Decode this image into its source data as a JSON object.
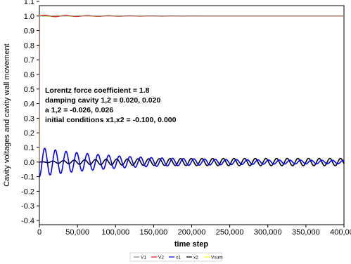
{
  "chart_data": {
    "type": "line",
    "title": "",
    "xlabel": "time step",
    "ylabel": "Cavity voltages and cavity wall movement",
    "xlim": [
      0,
      400000
    ],
    "ylim": [
      -0.4,
      1.1
    ],
    "x_ticks": [
      0,
      50000,
      100000,
      150000,
      200000,
      250000,
      300000,
      350000,
      400000
    ],
    "x_tick_labels": [
      "0",
      "50,000",
      "100,000",
      "150,000",
      "200,000",
      "250,000",
      "300,000",
      "350,000",
      "400,000"
    ],
    "y_ticks": [
      -0.4,
      -0.3,
      -0.2,
      -0.1,
      0.0,
      0.1,
      0.2,
      0.3,
      0.4,
      0.5,
      0.6,
      0.7,
      0.8,
      0.9,
      1.0,
      1.1
    ],
    "y_tick_labels": [
      "-0.4",
      "-0.3",
      "-0.2",
      "-0.1",
      "0.0",
      "0.1",
      "0.2",
      "0.3",
      "0.4",
      "0.5",
      "0.6",
      "0.7",
      "0.8",
      "0.9",
      "1.0",
      "1.1"
    ],
    "annotations": [
      "Lorentz force coefficient = 1.8",
      "damping cavity 1,2 =   0.020,   0.020",
      "a 1,2 =  -0.026,   0.026",
      "initial conditions x1,x2 =  -0.100,   0.000"
    ],
    "legend_position": "bottom-center",
    "series": [
      {
        "name": "V1",
        "color": "#808080",
        "description": "steps to 1.0 at t=0 and stays ~1.0"
      },
      {
        "name": "V2",
        "color": "#ff0000",
        "description": "steps to 1.0 at t=0 with small ripple until ~210,000"
      },
      {
        "name": "x1",
        "color": "#0000ff",
        "description": "damped oscillation starting at -0.100, amplitude ~0.09 decaying to ~0.01"
      },
      {
        "name": "x2",
        "color": "#000000",
        "description": "oscillation starting at 0.000, amplitude growing to ~0.025"
      },
      {
        "name": "Vsum",
        "color": "#ffff00",
        "description": "near 1.0 with ripple in early time"
      }
    ],
    "approx_points": {
      "x1_envelope": [
        [
          0,
          -0.1
        ],
        [
          12000,
          0.09
        ],
        [
          50000,
          0.07
        ],
        [
          100000,
          0.05
        ],
        [
          150000,
          0.035
        ],
        [
          200000,
          0.025
        ],
        [
          250000,
          0.02
        ],
        [
          300000,
          0.015
        ],
        [
          400000,
          0.01
        ]
      ],
      "x2_envelope": [
        [
          0,
          0.0
        ],
        [
          50000,
          0.012
        ],
        [
          100000,
          0.02
        ],
        [
          200000,
          0.025
        ],
        [
          400000,
          0.025
        ]
      ]
    }
  }
}
